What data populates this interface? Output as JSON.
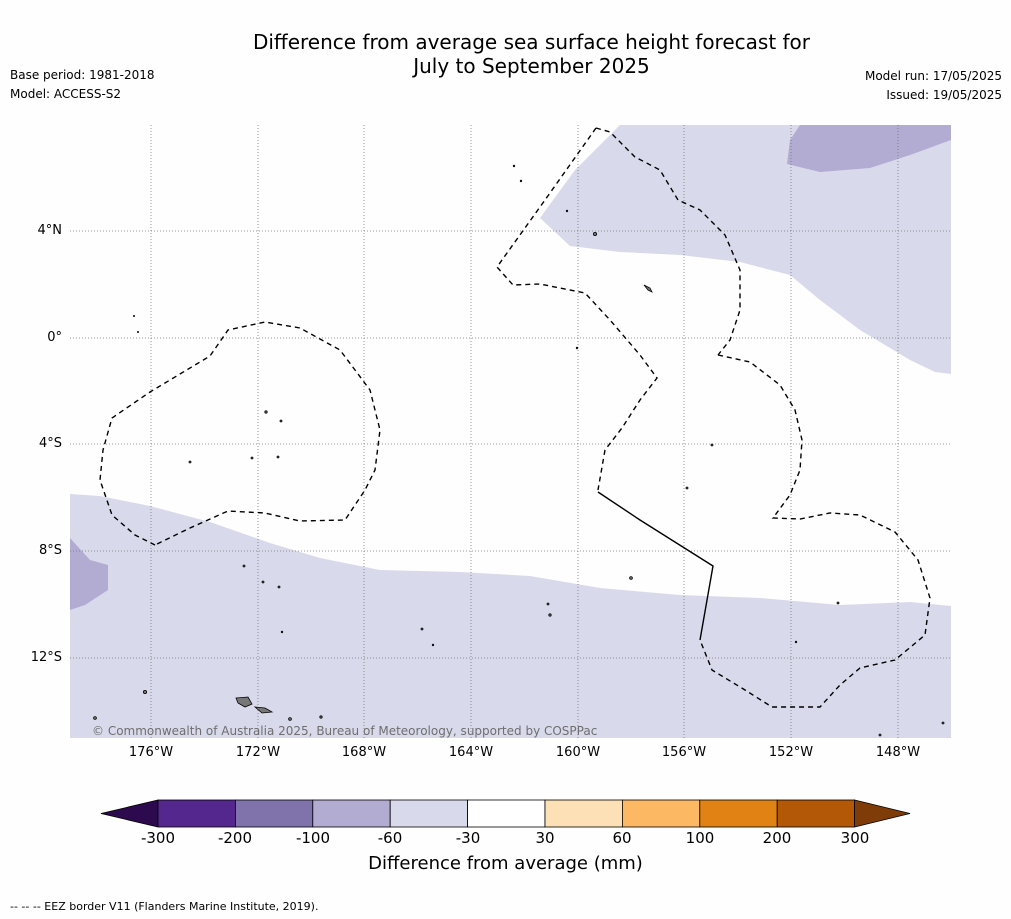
{
  "title_line1": "Difference from average sea surface height forecast for",
  "title_line2": "July to September 2025",
  "base_period": "Base period: 1981-2018",
  "model": "Model: ACCESS-S2",
  "model_run": "Model run: 17/05/2025",
  "issued": "Issued: 19/05/2025",
  "lat_labels": [
    "4°N",
    "0°",
    "4°S",
    "8°S",
    "12°S"
  ],
  "lon_labels": [
    "176°W",
    "172°W",
    "168°W",
    "164°W",
    "160°W",
    "156°W",
    "152°W",
    "148°W"
  ],
  "copyright": "© Commonwealth of Australia 2025, Bureau of Meteorology, supported by COSPPac",
  "colorbar": {
    "label": "Difference from average (mm)",
    "ticks": [
      "-300",
      "-200",
      "-100",
      "-60",
      "-30",
      "30",
      "60",
      "100",
      "200",
      "300"
    ],
    "colors": [
      "#2d0a4e",
      "#54278f",
      "#8073ac",
      "#b2abd2",
      "#d8daeb",
      "#ffffff",
      "#fee0b6",
      "#fdb863",
      "#e08214",
      "#b35806",
      "#7f3b08"
    ]
  },
  "footnote": "--  --  -- EEZ border V11 (Flanders Marine Institute, 2019)."
}
